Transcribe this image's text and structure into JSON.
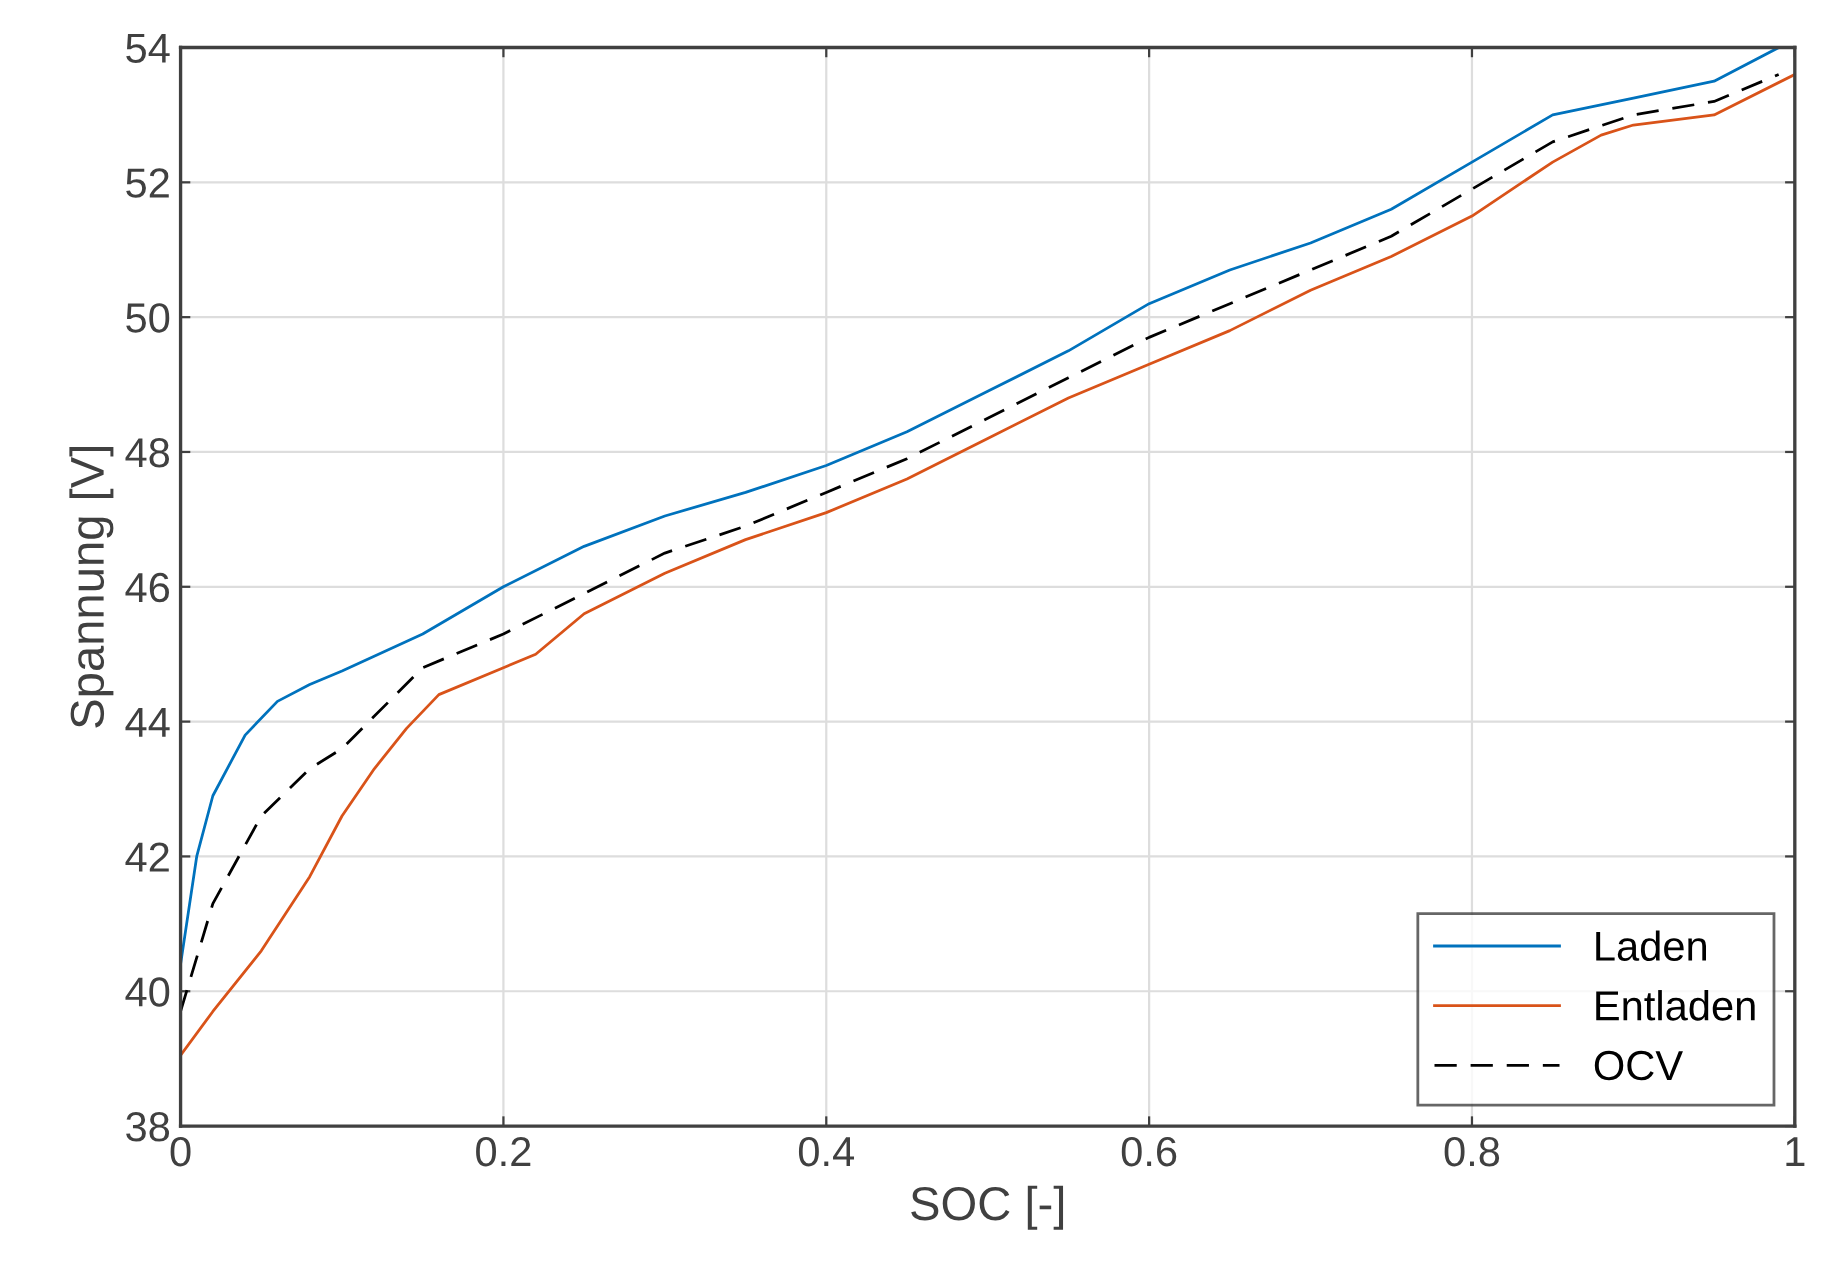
{
  "chart_data": {
    "type": "line",
    "xlabel": "SOC [-]",
    "ylabel": "Spannung [V]",
    "xlim": [
      0,
      1
    ],
    "ylim": [
      38,
      54
    ],
    "xticks": [
      0,
      0.2,
      0.4,
      0.6,
      0.8,
      1
    ],
    "yticks": [
      38,
      40,
      42,
      44,
      46,
      48,
      50,
      52,
      54
    ],
    "grid": true,
    "legend": "bottom right",
    "series": [
      {
        "name": "Laden",
        "color": "#0072bd",
        "line_style": "solid",
        "x": [
          0,
          0.01,
          0.02,
          0.04,
          0.06,
          0.08,
          0.1,
          0.15,
          0.2,
          0.25,
          0.3,
          0.35,
          0.4,
          0.45,
          0.5,
          0.55,
          0.6,
          0.65,
          0.7,
          0.75,
          0.8,
          0.85,
          0.9,
          0.95,
          0.99
        ],
        "values": [
          40.4,
          42.0,
          42.9,
          43.8,
          44.3,
          44.55,
          44.75,
          45.3,
          46.0,
          46.6,
          47.05,
          47.4,
          47.8,
          48.3,
          48.9,
          49.5,
          50.2,
          50.7,
          51.1,
          51.6,
          52.3,
          53.0,
          53.25,
          53.5,
          54.0
        ]
      },
      {
        "name": "Entladen",
        "color": "#d95319",
        "line_style": "solid",
        "x": [
          0,
          0.02,
          0.05,
          0.08,
          0.1,
          0.12,
          0.14,
          0.16,
          0.2,
          0.22,
          0.25,
          0.3,
          0.35,
          0.4,
          0.45,
          0.5,
          0.55,
          0.6,
          0.65,
          0.7,
          0.75,
          0.8,
          0.85,
          0.88,
          0.9,
          0.95,
          1.0
        ],
        "values": [
          39.05,
          39.7,
          40.6,
          41.7,
          42.6,
          43.3,
          43.9,
          44.4,
          44.8,
          45.0,
          45.6,
          46.2,
          46.7,
          47.1,
          47.6,
          48.2,
          48.8,
          49.3,
          49.8,
          50.4,
          50.9,
          51.5,
          52.3,
          52.7,
          52.85,
          53.0,
          53.6
        ]
      },
      {
        "name": "OCV",
        "color": "#000000",
        "line_style": "dashed",
        "x": [
          0,
          0.02,
          0.05,
          0.08,
          0.1,
          0.15,
          0.2,
          0.25,
          0.3,
          0.35,
          0.4,
          0.45,
          0.5,
          0.55,
          0.6,
          0.65,
          0.7,
          0.75,
          0.8,
          0.85,
          0.9,
          0.95,
          0.99
        ],
        "values": [
          39.7,
          41.3,
          42.6,
          43.3,
          43.6,
          44.8,
          45.3,
          45.9,
          46.5,
          46.9,
          47.4,
          47.9,
          48.5,
          49.1,
          49.7,
          50.2,
          50.7,
          51.2,
          51.9,
          52.6,
          53.0,
          53.2,
          53.6
        ]
      }
    ]
  }
}
